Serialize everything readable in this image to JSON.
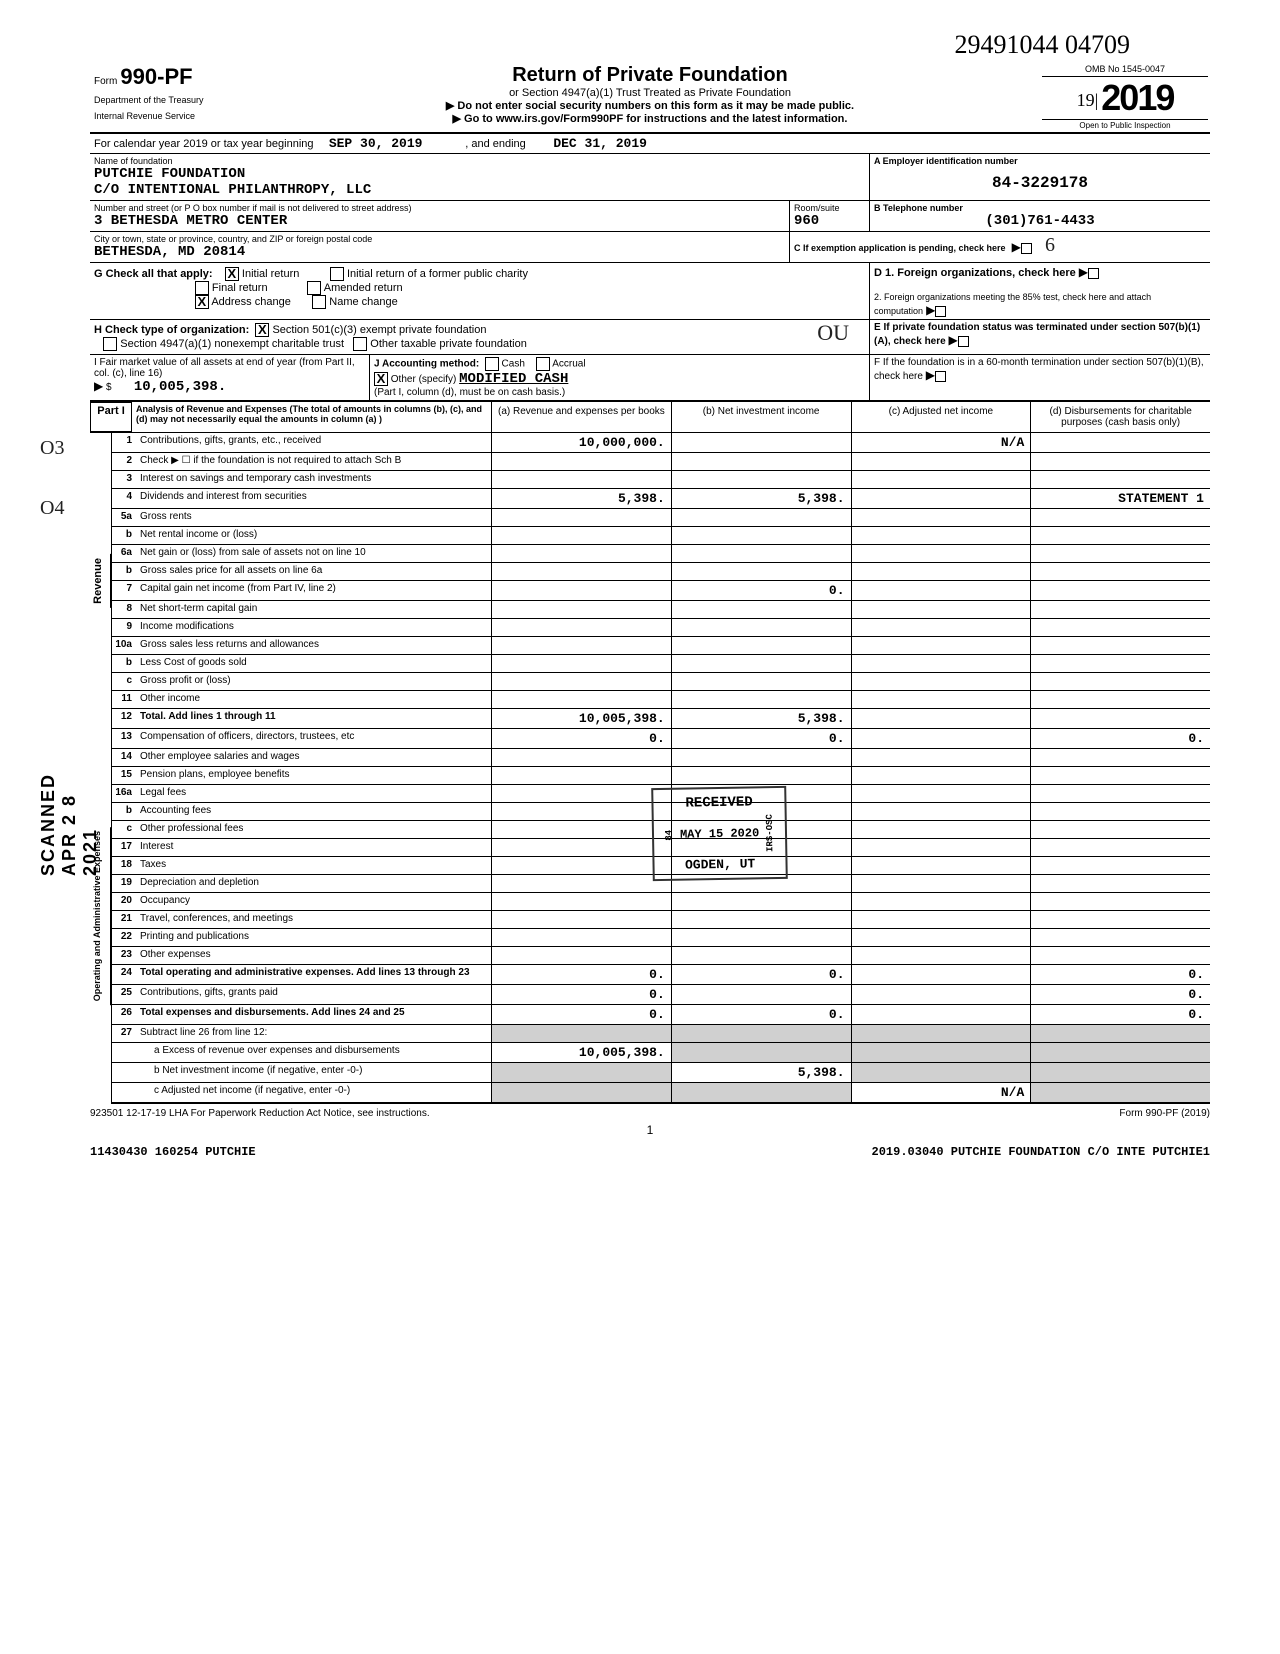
{
  "handwritten_id": "29491044 04709",
  "header": {
    "form_prefix": "Form",
    "form_no": "990-PF",
    "dept1": "Department of the Treasury",
    "dept2": "Internal Revenue Service",
    "title": "Return of Private Foundation",
    "subtitle": "or Section 4947(a)(1) Trust Treated as Private Foundation",
    "inst1": "▶ Do not enter social security numbers on this form as it may be made public.",
    "inst2": "▶ Go to www.irs.gov/Form990PF for instructions and the latest information.",
    "omb": "OMB No  1545-0047",
    "hand_year_prefix": "19",
    "year_digits": "19",
    "full_year": "2019",
    "open": "Open to Public Inspection"
  },
  "cal": {
    "prefix": "For calendar year 2019 or tax year beginning",
    "begin": "SEP 30, 2019",
    "mid": ", and ending",
    "end": "DEC 31, 2019"
  },
  "name": {
    "label": "Name of foundation",
    "line1": "PUTCHIE FOUNDATION",
    "line2": "C/O INTENTIONAL PHILANTHROPY, LLC",
    "a_label": "A Employer identification number",
    "ein": "84-3229178"
  },
  "addr": {
    "label": "Number and street (or P O  box number if mail is not delivered to street address)",
    "street": "3 BETHESDA METRO CENTER",
    "room_label": "Room/suite",
    "room": "960",
    "b_label": "B Telephone number",
    "phone": "(301)761-4433",
    "city_label": "City or town, state or province, country, and ZIP or foreign postal code",
    "city": "BETHESDA, MD   20814",
    "c_label": "C If exemption application is pending, check here"
  },
  "g": {
    "label": "G  Check all that apply:",
    "initial": "Initial return",
    "initial_former": "Initial return of a former public charity",
    "final": "Final return",
    "amended": "Amended return",
    "addr_change": "Address change",
    "name_change": "Name change",
    "d_label": "D 1. Foreign organizations, check here",
    "d2_label": "2. Foreign organizations meeting the 85% test, check here and attach computation"
  },
  "h": {
    "label": "H  Check type of organization:",
    "opt1": "Section 501(c)(3) exempt private foundation",
    "opt2": "Section 4947(a)(1) nonexempt charitable trust",
    "opt3": "Other taxable private foundation",
    "hand_note": "OU",
    "e_label": "E  If private foundation status was terminated under section 507(b)(1)(A), check here"
  },
  "fmv": {
    "i_label": "I  Fair market value of all assets at end of year (from Part II, col. (c), line 16)",
    "amount": "10,005,398.",
    "j_label": "J  Accounting method:",
    "cash": "Cash",
    "accrual": "Accrual",
    "other": "Other (specify)",
    "other_val": "MODIFIED CASH",
    "basis": "(Part I, column (d), must be on cash basis.)",
    "f_label": "F  If the foundation is in a 60-month termination under section 507(b)(1)(B), check here"
  },
  "part1": {
    "label": "Part I",
    "desc": "Analysis of Revenue and Expenses (The total of amounts in columns (b), (c), and (d) may not necessarily equal the amounts in column (a) )",
    "col_a": "(a) Revenue and expenses per books",
    "col_b": "(b) Net investment income",
    "col_c": "(c) Adjusted net income",
    "col_d": "(d) Disbursements for charitable purposes (cash basis only)"
  },
  "side_labels": {
    "revenue": "Revenue",
    "expenses": "Operating and Administrative Expenses"
  },
  "rows": [
    {
      "n": "1",
      "d": "",
      "a": "10,000,000.",
      "b": "",
      "c": "N/A"
    },
    {
      "n": "2",
      "d": "",
      "a": "",
      "b": "",
      "c": ""
    },
    {
      "n": "3",
      "d": "",
      "a": "",
      "b": "",
      "c": ""
    },
    {
      "n": "4",
      "d": "STATEMENT 1",
      "a": "5,398.",
      "b": "5,398.",
      "c": ""
    },
    {
      "n": "5a",
      "d": "",
      "a": "",
      "b": "",
      "c": ""
    },
    {
      "n": "b",
      "d": "",
      "a": "",
      "b": "",
      "c": ""
    },
    {
      "n": "6a",
      "d": "",
      "a": "",
      "b": "",
      "c": ""
    },
    {
      "n": "b",
      "d": "",
      "a": "",
      "b": "",
      "c": ""
    },
    {
      "n": "7",
      "d": "",
      "a": "",
      "b": "0.",
      "c": ""
    },
    {
      "n": "8",
      "d": "",
      "a": "",
      "b": "",
      "c": ""
    },
    {
      "n": "9",
      "d": "",
      "a": "",
      "b": "",
      "c": ""
    },
    {
      "n": "10a",
      "d": "",
      "a": "",
      "b": "",
      "c": ""
    },
    {
      "n": "b",
      "d": "",
      "a": "",
      "b": "",
      "c": ""
    },
    {
      "n": "c",
      "d": "",
      "a": "",
      "b": "",
      "c": ""
    },
    {
      "n": "11",
      "d": "",
      "a": "",
      "b": "",
      "c": ""
    },
    {
      "n": "12",
      "d": "",
      "a": "10,005,398.",
      "b": "5,398.",
      "c": ""
    },
    {
      "n": "13",
      "d": "0.",
      "a": "0.",
      "b": "0.",
      "c": ""
    },
    {
      "n": "14",
      "d": "",
      "a": "",
      "b": "",
      "c": ""
    },
    {
      "n": "15",
      "d": "",
      "a": "",
      "b": "",
      "c": ""
    },
    {
      "n": "16a",
      "d": "",
      "a": "",
      "b": "",
      "c": ""
    },
    {
      "n": "b",
      "d": "",
      "a": "",
      "b": "",
      "c": ""
    },
    {
      "n": "c",
      "d": "",
      "a": "",
      "b": "",
      "c": ""
    },
    {
      "n": "17",
      "d": "",
      "a": "",
      "b": "",
      "c": ""
    },
    {
      "n": "18",
      "d": "",
      "a": "",
      "b": "",
      "c": ""
    },
    {
      "n": "19",
      "d": "",
      "a": "",
      "b": "",
      "c": ""
    },
    {
      "n": "20",
      "d": "",
      "a": "",
      "b": "",
      "c": ""
    },
    {
      "n": "21",
      "d": "",
      "a": "",
      "b": "",
      "c": ""
    },
    {
      "n": "22",
      "d": "",
      "a": "",
      "b": "",
      "c": ""
    },
    {
      "n": "23",
      "d": "",
      "a": "",
      "b": "",
      "c": ""
    },
    {
      "n": "24",
      "d": "0.",
      "a": "0.",
      "b": "0.",
      "c": ""
    },
    {
      "n": "25",
      "d": "0.",
      "a": "0.",
      "b": "",
      "c": ""
    },
    {
      "n": "26",
      "d": "0.",
      "a": "0.",
      "b": "0.",
      "c": ""
    }
  ],
  "row27": {
    "n": "27",
    "d": "Subtract line 26 from line 12:",
    "a_label": "a Excess of revenue over expenses and disbursements",
    "a_val": "10,005,398.",
    "b_label": "b Net investment income (if negative, enter -0-)",
    "b_val": "5,398.",
    "c_label": "c Adjusted net income (if negative, enter -0-)",
    "c_val": "N/A"
  },
  "stamps": {
    "received": "RECEIVED",
    "date": "MAY 15 2020",
    "irs": "IRS-OSC",
    "num": "84",
    "ogden": "OGDEN, UT",
    "scanned": "SCANNED APR 2 8 2021"
  },
  "margin": {
    "m1": "O3",
    "m2": "O4"
  },
  "footer": {
    "left": "923501  12-17-19   LHA  For Paperwork Reduction Act Notice, see instructions.",
    "right": "Form 990-PF (2019)",
    "page": "1",
    "b_left": "11430430 160254 PUTCHIE",
    "b_right": "2019.03040 PUTCHIE FOUNDATION C/O INTE PUTCHIE1"
  }
}
